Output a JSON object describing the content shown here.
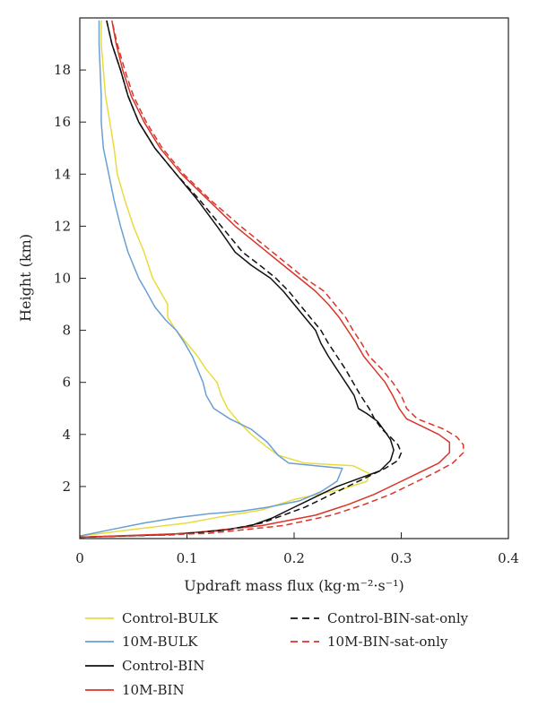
{
  "chart_data": {
    "type": "line",
    "xlabel": "Updraft mass flux (kg·m⁻²·s⁻¹)",
    "ylabel": "Height (km)",
    "xlim": [
      0,
      0.4
    ],
    "ylim": [
      0,
      20
    ],
    "xticks": [
      "0",
      "0.1",
      "0.2",
      "0.3",
      "0.4"
    ],
    "yticks": [
      "2",
      "4",
      "6",
      "8",
      "10",
      "12",
      "14",
      "16",
      "18"
    ],
    "legend_placement": "below",
    "series": [
      {
        "name": "Control-BULK",
        "color": "#e8dc3c",
        "dash": "solid",
        "points": [
          [
            0.0,
            0.1
          ],
          [
            0.05,
            0.35
          ],
          [
            0.1,
            0.6
          ],
          [
            0.14,
            0.9
          ],
          [
            0.17,
            1.1
          ],
          [
            0.2,
            1.5
          ],
          [
            0.245,
            1.9
          ],
          [
            0.268,
            2.2
          ],
          [
            0.27,
            2.5
          ],
          [
            0.255,
            2.8
          ],
          [
            0.21,
            2.9
          ],
          [
            0.185,
            3.2
          ],
          [
            0.175,
            3.5
          ],
          [
            0.16,
            4.0
          ],
          [
            0.148,
            4.5
          ],
          [
            0.138,
            5.0
          ],
          [
            0.132,
            5.5
          ],
          [
            0.128,
            6.0
          ],
          [
            0.118,
            6.5
          ],
          [
            0.11,
            7.0
          ],
          [
            0.1,
            7.5
          ],
          [
            0.09,
            8.0
          ],
          [
            0.082,
            8.5
          ],
          [
            0.082,
            9.0
          ],
          [
            0.075,
            9.5
          ],
          [
            0.068,
            10.0
          ],
          [
            0.06,
            11.0
          ],
          [
            0.05,
            12.0
          ],
          [
            0.042,
            13.0
          ],
          [
            0.035,
            14.0
          ],
          [
            0.032,
            15.0
          ],
          [
            0.028,
            16.0
          ],
          [
            0.024,
            17.0
          ],
          [
            0.022,
            18.0
          ],
          [
            0.02,
            19.0
          ],
          [
            0.02,
            19.9
          ]
        ]
      },
      {
        "name": "10M-BULK",
        "color": "#6a9fd4",
        "dash": "solid",
        "points": [
          [
            0.0,
            0.1
          ],
          [
            0.03,
            0.35
          ],
          [
            0.06,
            0.6
          ],
          [
            0.09,
            0.8
          ],
          [
            0.12,
            0.95
          ],
          [
            0.15,
            1.05
          ],
          [
            0.175,
            1.2
          ],
          [
            0.205,
            1.45
          ],
          [
            0.225,
            1.8
          ],
          [
            0.24,
            2.2
          ],
          [
            0.245,
            2.7
          ],
          [
            0.22,
            2.8
          ],
          [
            0.195,
            2.9
          ],
          [
            0.185,
            3.2
          ],
          [
            0.175,
            3.7
          ],
          [
            0.16,
            4.2
          ],
          [
            0.14,
            4.6
          ],
          [
            0.125,
            5.0
          ],
          [
            0.118,
            5.5
          ],
          [
            0.115,
            6.0
          ],
          [
            0.11,
            6.5
          ],
          [
            0.105,
            7.0
          ],
          [
            0.098,
            7.5
          ],
          [
            0.09,
            8.0
          ],
          [
            0.08,
            8.4
          ],
          [
            0.07,
            8.9
          ],
          [
            0.062,
            9.5
          ],
          [
            0.055,
            10.0
          ],
          [
            0.045,
            11.0
          ],
          [
            0.038,
            12.0
          ],
          [
            0.032,
            13.0
          ],
          [
            0.027,
            14.0
          ],
          [
            0.022,
            15.0
          ],
          [
            0.02,
            16.0
          ],
          [
            0.02,
            17.0
          ],
          [
            0.019,
            18.0
          ],
          [
            0.018,
            19.0
          ],
          [
            0.018,
            19.9
          ]
        ]
      },
      {
        "name": "Control-BIN",
        "color": "#111111",
        "dash": "solid",
        "points": [
          [
            0.0,
            0.05
          ],
          [
            0.08,
            0.15
          ],
          [
            0.13,
            0.3
          ],
          [
            0.16,
            0.5
          ],
          [
            0.18,
            0.8
          ],
          [
            0.195,
            1.1
          ],
          [
            0.21,
            1.4
          ],
          [
            0.225,
            1.7
          ],
          [
            0.24,
            2.0
          ],
          [
            0.26,
            2.3
          ],
          [
            0.28,
            2.6
          ],
          [
            0.29,
            3.0
          ],
          [
            0.293,
            3.4
          ],
          [
            0.29,
            3.8
          ],
          [
            0.285,
            4.1
          ],
          [
            0.278,
            4.5
          ],
          [
            0.268,
            4.8
          ],
          [
            0.26,
            5.0
          ],
          [
            0.256,
            5.5
          ],
          [
            0.248,
            6.0
          ],
          [
            0.24,
            6.5
          ],
          [
            0.232,
            7.0
          ],
          [
            0.225,
            7.5
          ],
          [
            0.22,
            8.0
          ],
          [
            0.21,
            8.5
          ],
          [
            0.2,
            9.0
          ],
          [
            0.19,
            9.5
          ],
          [
            0.178,
            10.0
          ],
          [
            0.16,
            10.5
          ],
          [
            0.145,
            11.0
          ],
          [
            0.128,
            12.0
          ],
          [
            0.11,
            13.0
          ],
          [
            0.09,
            14.0
          ],
          [
            0.07,
            15.0
          ],
          [
            0.055,
            16.0
          ],
          [
            0.045,
            17.0
          ],
          [
            0.038,
            18.0
          ],
          [
            0.03,
            19.0
          ],
          [
            0.025,
            19.9
          ]
        ]
      },
      {
        "name": "10M-BIN",
        "color": "#d9352a",
        "dash": "solid",
        "points": [
          [
            0.0,
            0.05
          ],
          [
            0.1,
            0.2
          ],
          [
            0.17,
            0.5
          ],
          [
            0.22,
            0.9
          ],
          [
            0.25,
            1.3
          ],
          [
            0.275,
            1.7
          ],
          [
            0.295,
            2.1
          ],
          [
            0.315,
            2.5
          ],
          [
            0.335,
            2.9
          ],
          [
            0.345,
            3.3
          ],
          [
            0.345,
            3.7
          ],
          [
            0.335,
            4.0
          ],
          [
            0.32,
            4.3
          ],
          [
            0.305,
            4.6
          ],
          [
            0.298,
            5.0
          ],
          [
            0.292,
            5.5
          ],
          [
            0.285,
            6.0
          ],
          [
            0.275,
            6.5
          ],
          [
            0.265,
            7.0
          ],
          [
            0.258,
            7.5
          ],
          [
            0.25,
            8.0
          ],
          [
            0.242,
            8.5
          ],
          [
            0.232,
            9.0
          ],
          [
            0.22,
            9.5
          ],
          [
            0.205,
            10.0
          ],
          [
            0.19,
            10.5
          ],
          [
            0.175,
            11.0
          ],
          [
            0.145,
            12.0
          ],
          [
            0.12,
            13.0
          ],
          [
            0.095,
            14.0
          ],
          [
            0.075,
            15.0
          ],
          [
            0.06,
            16.0
          ],
          [
            0.048,
            17.0
          ],
          [
            0.04,
            18.0
          ],
          [
            0.034,
            19.0
          ],
          [
            0.03,
            19.9
          ]
        ]
      },
      {
        "name": "Control-BIN-sat-only",
        "color": "#111111",
        "dash": "dashed",
        "points": [
          [
            0.0,
            0.05
          ],
          [
            0.09,
            0.15
          ],
          [
            0.14,
            0.35
          ],
          [
            0.17,
            0.6
          ],
          [
            0.19,
            0.9
          ],
          [
            0.21,
            1.2
          ],
          [
            0.225,
            1.5
          ],
          [
            0.24,
            1.8
          ],
          [
            0.255,
            2.1
          ],
          [
            0.27,
            2.4
          ],
          [
            0.285,
            2.7
          ],
          [
            0.297,
            3.0
          ],
          [
            0.3,
            3.3
          ],
          [
            0.297,
            3.6
          ],
          [
            0.29,
            3.9
          ],
          [
            0.282,
            4.2
          ],
          [
            0.275,
            4.6
          ],
          [
            0.27,
            5.0
          ],
          [
            0.262,
            5.5
          ],
          [
            0.255,
            6.0
          ],
          [
            0.248,
            6.5
          ],
          [
            0.24,
            7.0
          ],
          [
            0.232,
            7.5
          ],
          [
            0.225,
            8.0
          ],
          [
            0.215,
            8.5
          ],
          [
            0.205,
            9.0
          ],
          [
            0.195,
            9.5
          ],
          [
            0.183,
            10.0
          ],
          [
            0.168,
            10.5
          ],
          [
            0.152,
            11.0
          ],
          [
            0.132,
            12.0
          ],
          [
            0.112,
            13.0
          ],
          [
            0.09,
            14.0
          ],
          [
            0.07,
            15.0
          ],
          [
            0.055,
            16.0
          ],
          [
            0.045,
            17.0
          ],
          [
            0.038,
            18.0
          ],
          [
            0.03,
            19.0
          ],
          [
            0.025,
            19.9
          ]
        ]
      },
      {
        "name": "10M-BIN-sat-only",
        "color": "#d9352a",
        "dash": "dashed",
        "points": [
          [
            0.0,
            0.05
          ],
          [
            0.12,
            0.2
          ],
          [
            0.19,
            0.5
          ],
          [
            0.235,
            0.9
          ],
          [
            0.265,
            1.3
          ],
          [
            0.29,
            1.7
          ],
          [
            0.31,
            2.1
          ],
          [
            0.33,
            2.5
          ],
          [
            0.348,
            2.9
          ],
          [
            0.358,
            3.3
          ],
          [
            0.358,
            3.6
          ],
          [
            0.352,
            3.9
          ],
          [
            0.34,
            4.2
          ],
          [
            0.315,
            4.6
          ],
          [
            0.305,
            5.0
          ],
          [
            0.3,
            5.5
          ],
          [
            0.292,
            6.0
          ],
          [
            0.282,
            6.5
          ],
          [
            0.27,
            7.0
          ],
          [
            0.263,
            7.5
          ],
          [
            0.255,
            8.0
          ],
          [
            0.248,
            8.5
          ],
          [
            0.238,
            9.0
          ],
          [
            0.228,
            9.5
          ],
          [
            0.21,
            10.0
          ],
          [
            0.195,
            10.5
          ],
          [
            0.18,
            11.0
          ],
          [
            0.15,
            12.0
          ],
          [
            0.122,
            13.0
          ],
          [
            0.097,
            14.0
          ],
          [
            0.077,
            15.0
          ],
          [
            0.062,
            16.0
          ],
          [
            0.05,
            17.0
          ],
          [
            0.042,
            18.0
          ],
          [
            0.035,
            19.0
          ],
          [
            0.03,
            19.9
          ]
        ]
      }
    ]
  }
}
